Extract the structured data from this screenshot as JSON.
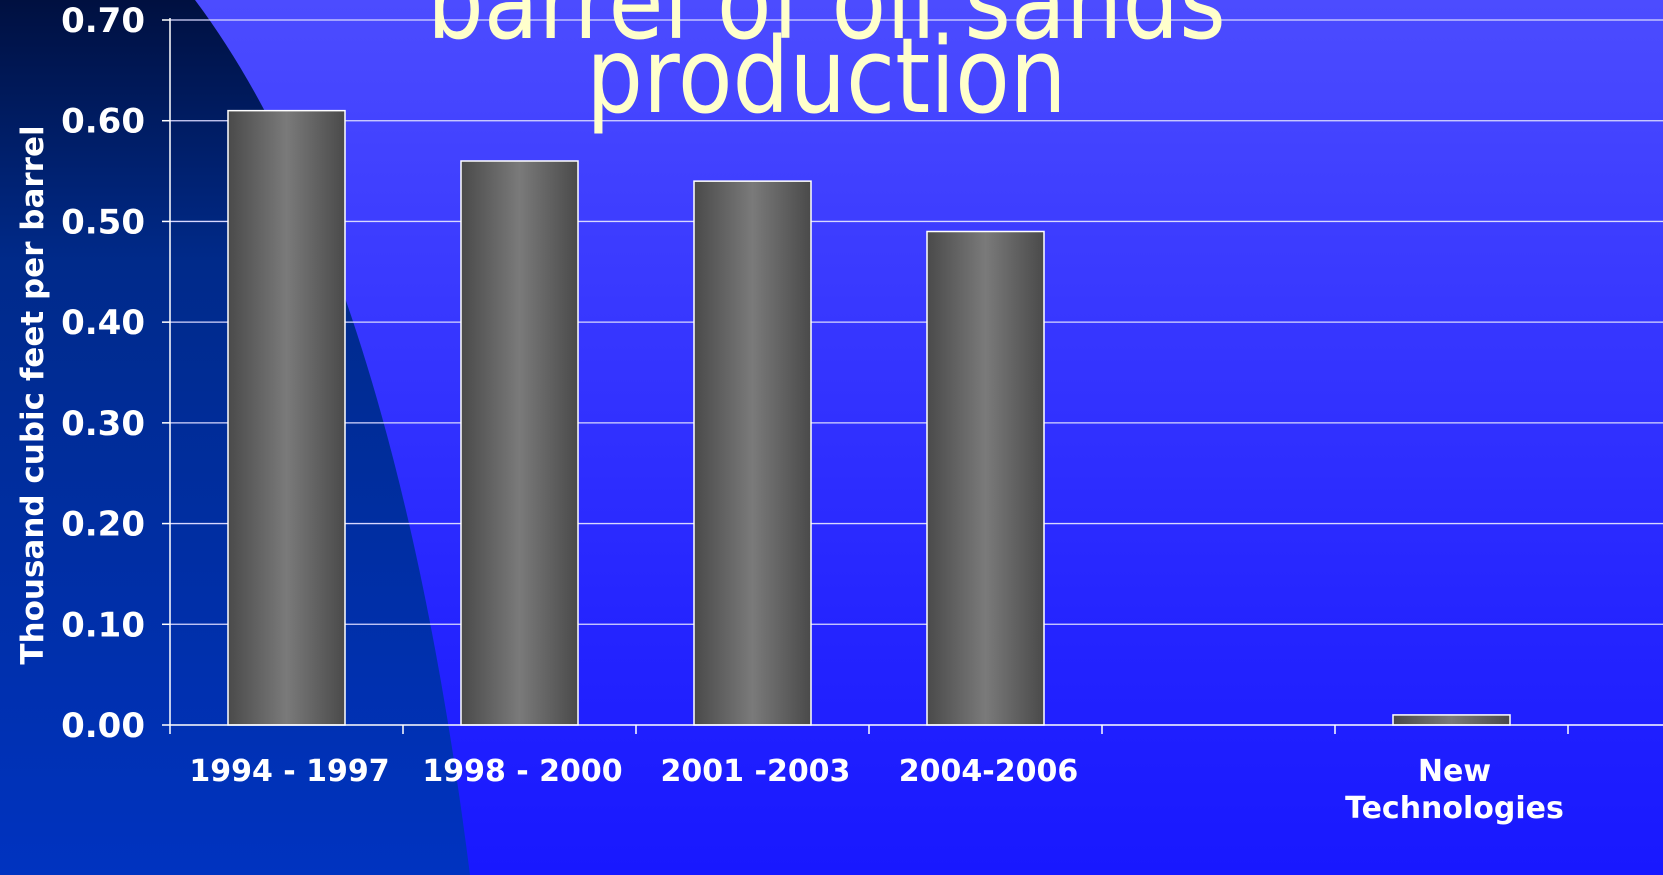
{
  "title_lines": [
    "barrel of oil sands",
    "production"
  ],
  "colors": {
    "bar_edge": "#ffffff",
    "bar_dark": "#4a4a4a",
    "bar_light": "#7a7a7a",
    "grid": "#d8d8ff",
    "title": "#ffffcc"
  },
  "chart_data": {
    "type": "bar",
    "ylabel": "Thousand cubic feet per barrel",
    "ylim": [
      0,
      0.7
    ],
    "yticks": [
      "0.00",
      "0.10",
      "0.20",
      "0.30",
      "0.40",
      "0.50",
      "0.60",
      "0.70"
    ],
    "grid": true,
    "categories": [
      "1994 - 1997",
      "1998 - 2000",
      "2001 -2003",
      "2004-2006",
      "",
      "New Technologies"
    ],
    "values": [
      0.61,
      0.56,
      0.54,
      0.49,
      null,
      0.01
    ]
  }
}
